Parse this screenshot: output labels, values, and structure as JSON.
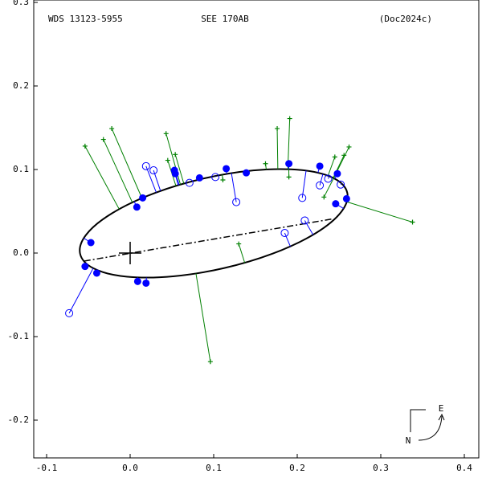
{
  "chart_data": {
    "type": "orbit",
    "title": "WDS 13123-5955",
    "subtitle": "SEE 170AB",
    "reference": "(Doc2024c)",
    "xlim": [
      -0.1154,
      0.4173
    ],
    "ylim": [
      -0.2452,
      0.3029
    ],
    "xticks": [
      -0.1,
      {
        "value": 0,
        "label": "0.0"
      },
      0.1,
      0.2,
      0.3,
      0.4
    ],
    "yticks": [
      0.3,
      0.2,
      0.1,
      {
        "value": 0,
        "label": "0.0"
      },
      -0.1,
      -0.2
    ],
    "orbit": {
      "center": [
        0.1,
        0.0356
      ],
      "semi_major": 0.164,
      "semi_minor": 0.055,
      "angle_deg": 12.9,
      "color": "#000000"
    },
    "node_line": {
      "x": [
        -0.055,
        0.243
      ],
      "y": [
        -0.0096,
        0.041
      ]
    },
    "primary": {
      "x": 0,
      "y": 0
    },
    "compass": {
      "east": "E",
      "north": "N"
    },
    "series": [
      {
        "marker": "filled",
        "color": "#0000ff",
        "x": [
          -0.047,
          -0.054,
          -0.04,
          0.009,
          0.019,
          0.008,
          0.015,
          0.053,
          0.054,
          0.083,
          0.115,
          0.139,
          0.19,
          0.227,
          0.248,
          0.246,
          0.259
        ],
        "y": [
          0.0125,
          -0.016,
          -0.024,
          -0.034,
          -0.036,
          0.055,
          0.066,
          0.099,
          0.095,
          0.09,
          0.101,
          0.096,
          0.107,
          0.104,
          0.095,
          0.059,
          0.065
        ]
      },
      {
        "marker": "open",
        "color": "#0000ff",
        "x": [
          -0.073,
          0.019,
          0.028,
          0.071,
          0.102,
          0.127,
          0.206,
          0.209,
          0.185,
          0.227,
          0.237,
          0.252
        ],
        "y": [
          -0.072,
          0.104,
          0.099,
          0.084,
          0.091,
          0.061,
          0.066,
          0.039,
          0.024,
          0.081,
          0.089,
          0.082
        ]
      },
      {
        "marker": "plus",
        "color": "#008000",
        "x": [
          -0.054,
          -0.022,
          -0.032,
          0.043,
          0.045,
          0.054,
          0.111,
          0.176,
          0.191,
          0.13,
          0.096,
          0.338,
          0.262,
          0.245,
          0.232,
          0.19,
          0.162,
          0.256
        ],
        "y": [
          0.128,
          0.149,
          0.136,
          0.143,
          0.111,
          0.118,
          0.0875,
          0.149,
          0.161,
          0.011,
          -0.13,
          0.037,
          0.127,
          0.115,
          0.067,
          0.091,
          0.107,
          0.117
        ]
      }
    ]
  }
}
